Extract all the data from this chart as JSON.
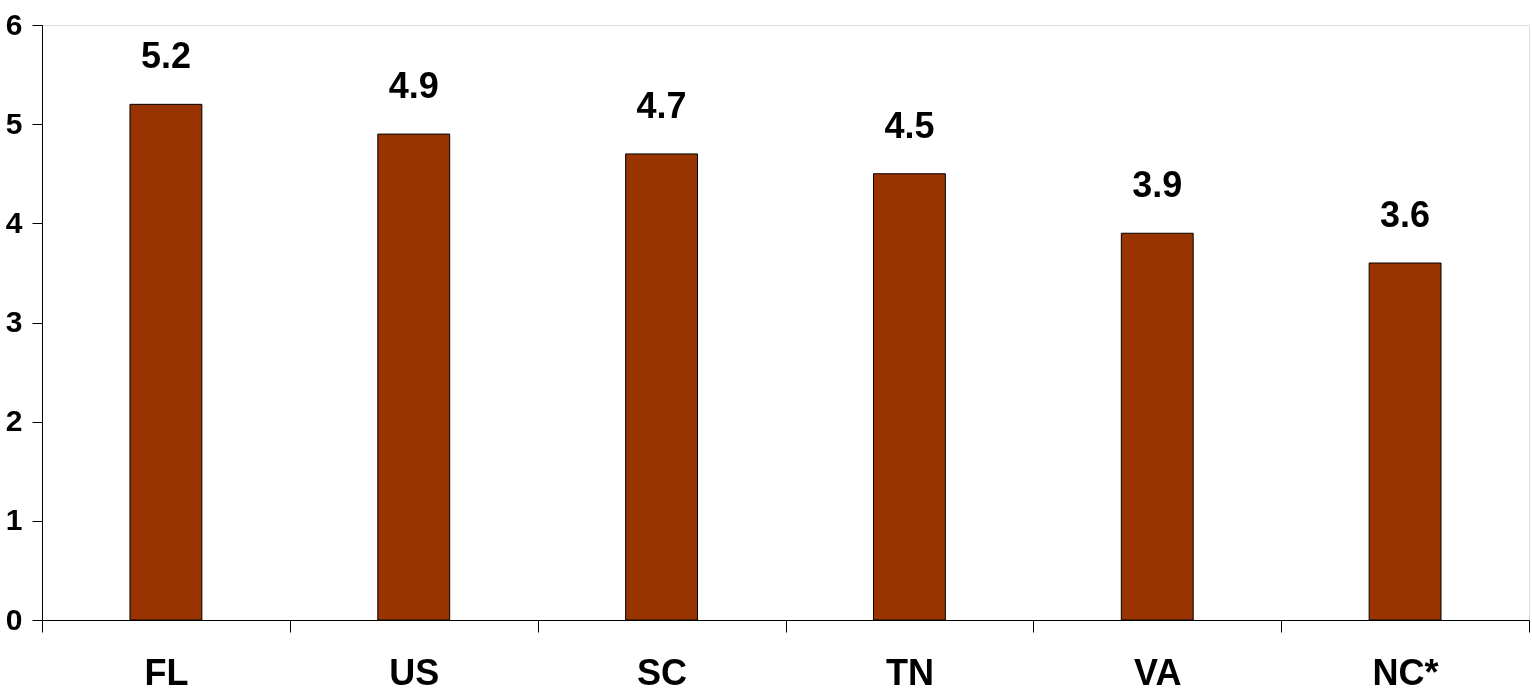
{
  "chart_data": {
    "type": "bar",
    "categories": [
      "FL",
      "US",
      "SC",
      "TN",
      "VA",
      "NC*"
    ],
    "values": [
      5.2,
      4.9,
      4.7,
      4.5,
      3.9,
      3.6
    ],
    "color": "#993300",
    "ylim": [
      0,
      6
    ],
    "yticks": [
      0,
      1,
      2,
      3,
      4,
      5,
      6
    ],
    "data_labels": true,
    "grid": false
  }
}
